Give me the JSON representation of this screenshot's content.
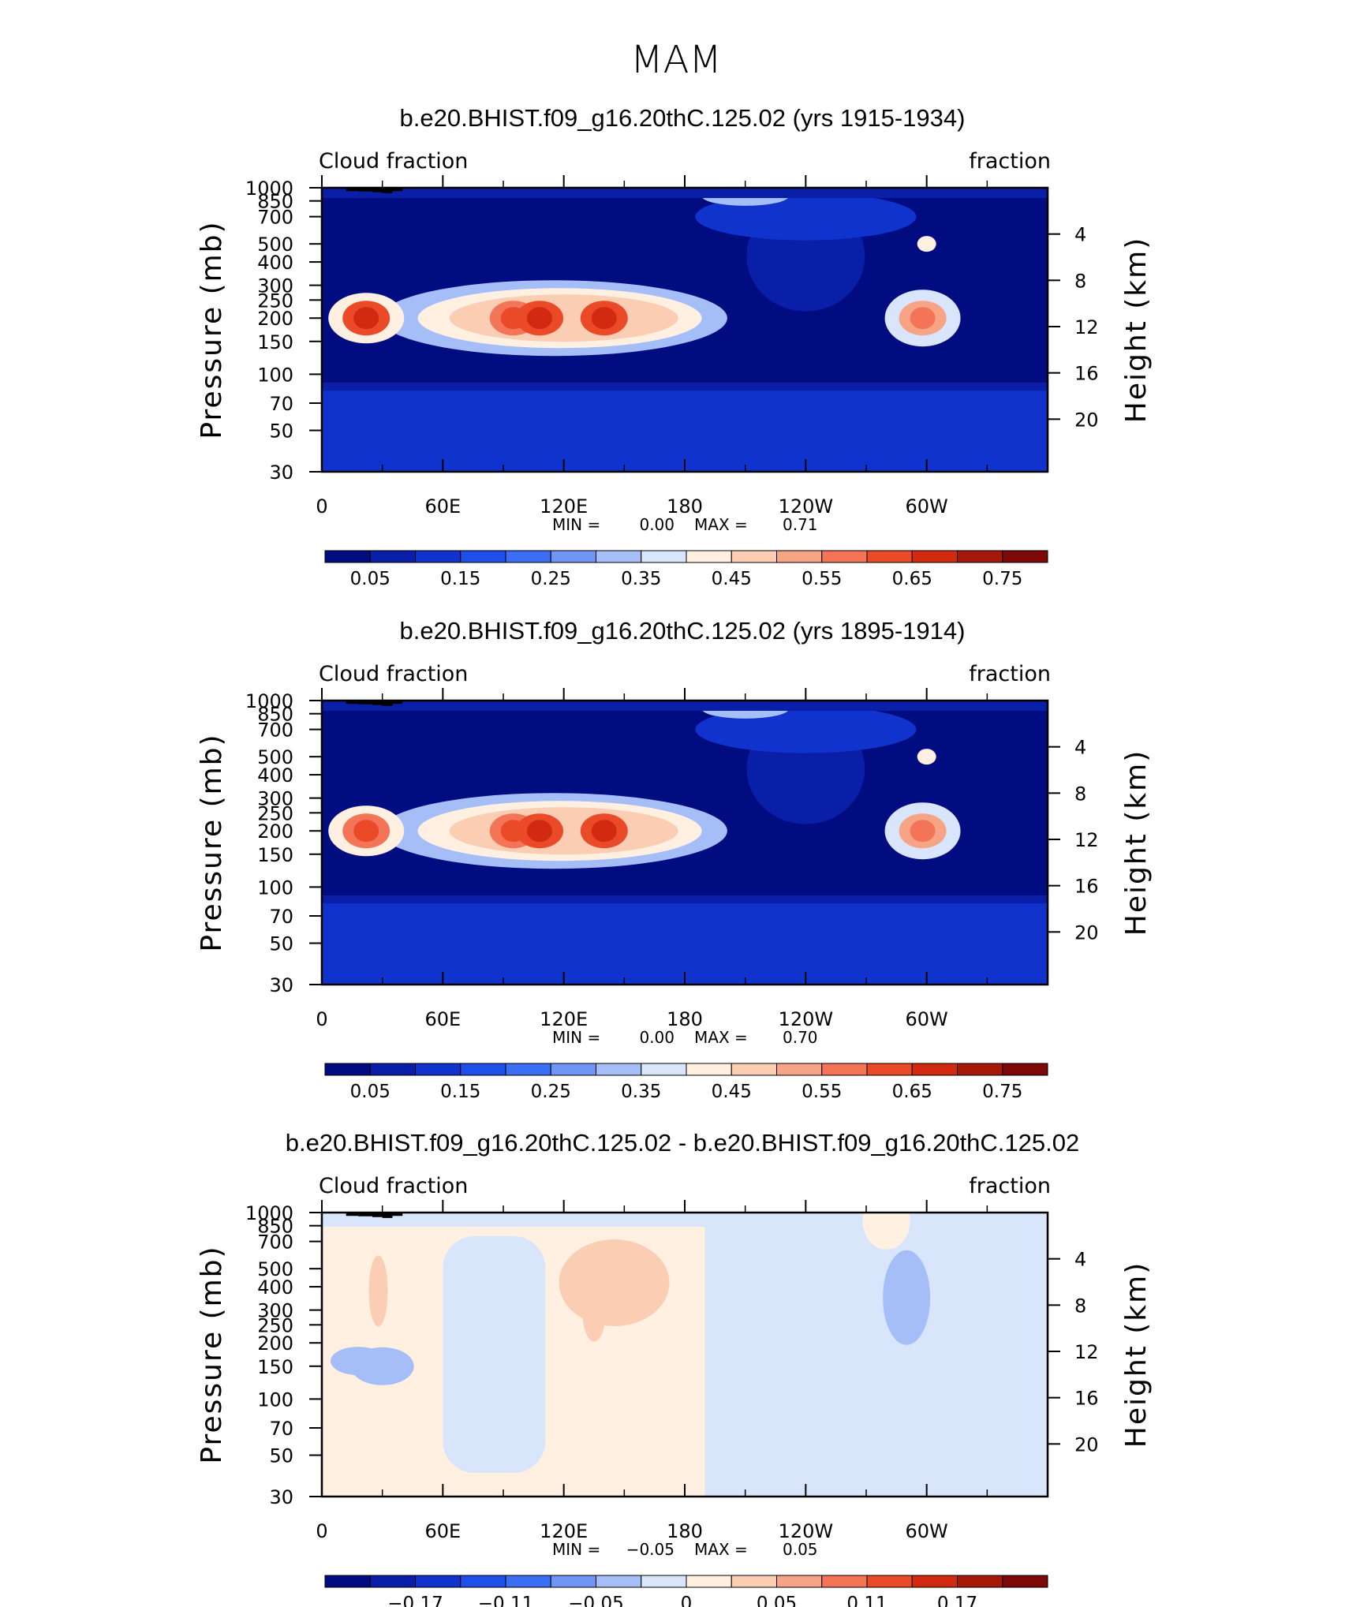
{
  "figure_title": "MAM",
  "chart_data": [
    {
      "type": "heatmap",
      "title": "b.e20.BHIST.f09_g16.20thC.125.02 (yrs 1915-1934)",
      "left_label": "Cloud fraction",
      "right_label": "fraction",
      "ylabel": "Pressure (mb)",
      "ylabel_right": "Height (km)",
      "xticklabels": [
        "0",
        "60E",
        "120E",
        "180",
        "120W",
        "60W"
      ],
      "yticklabels": [
        "30",
        "50",
        "70",
        "100",
        "150",
        "200",
        "250",
        "300",
        "400",
        "500",
        "700",
        "850",
        "1000"
      ],
      "yticklabels_right": [
        "20",
        "16",
        "12",
        "8",
        "4"
      ],
      "min_label": "MIN =",
      "min_value": "0.00",
      "max_label": "MAX =",
      "max_value": "0.71",
      "colorbar_ticks": [
        "0.05",
        "0.15",
        "0.25",
        "0.35",
        "0.45",
        "0.55",
        "0.65",
        "0.75"
      ],
      "levels": [
        0.0,
        0.05,
        0.1,
        0.15,
        0.2,
        0.25,
        0.3,
        0.35,
        0.4,
        0.45,
        0.5,
        0.55,
        0.6,
        0.65,
        0.7,
        0.75,
        0.8
      ],
      "colors": [
        "#000c7f",
        "#0a1fa7",
        "#0f33cc",
        "#1f4fe8",
        "#3b6ef2",
        "#6f96f5",
        "#a6bef7",
        "#d8e5fb",
        "#fff0e2",
        "#fbcdb3",
        "#f7a386",
        "#f37457",
        "#ea4a27",
        "#d22a10",
        "#a7180b",
        "#7d0808"
      ],
      "xlim": [
        0,
        360
      ],
      "ylim": [
        1000,
        30
      ],
      "features": [
        {
          "lon": 22,
          "p": 200,
          "value": 0.65
        },
        {
          "lon": 95,
          "p": 200,
          "value": 0.62
        },
        {
          "lon": 108,
          "p": 200,
          "value": 0.68
        },
        {
          "lon": 140,
          "p": 200,
          "value": 0.66
        },
        {
          "lon": 298,
          "p": 200,
          "value": 0.55
        },
        {
          "lon": 240,
          "p": 430,
          "value": 0.05
        }
      ]
    },
    {
      "type": "heatmap",
      "title": "b.e20.BHIST.f09_g16.20thC.125.02 (yrs 1895-1914)",
      "left_label": "Cloud fraction",
      "right_label": "fraction",
      "ylabel": "Pressure (mb)",
      "ylabel_right": "Height (km)",
      "xticklabels": [
        "0",
        "60E",
        "120E",
        "180",
        "120W",
        "60W"
      ],
      "yticklabels": [
        "30",
        "50",
        "70",
        "100",
        "150",
        "200",
        "250",
        "300",
        "400",
        "500",
        "700",
        "850",
        "1000"
      ],
      "yticklabels_right": [
        "20",
        "16",
        "12",
        "8",
        "4"
      ],
      "min_label": "MIN =",
      "min_value": "0.00",
      "max_label": "MAX =",
      "max_value": "0.70",
      "colorbar_ticks": [
        "0.05",
        "0.15",
        "0.25",
        "0.35",
        "0.45",
        "0.55",
        "0.65",
        "0.75"
      ],
      "levels": [
        0.0,
        0.05,
        0.1,
        0.15,
        0.2,
        0.25,
        0.3,
        0.35,
        0.4,
        0.45,
        0.5,
        0.55,
        0.6,
        0.65,
        0.7,
        0.75,
        0.8
      ],
      "colors": [
        "#000c7f",
        "#0a1fa7",
        "#0f33cc",
        "#1f4fe8",
        "#3b6ef2",
        "#6f96f5",
        "#a6bef7",
        "#d8e5fb",
        "#fff0e2",
        "#fbcdb3",
        "#f7a386",
        "#f37457",
        "#ea4a27",
        "#d22a10",
        "#a7180b",
        "#7d0808"
      ],
      "xlim": [
        0,
        360
      ],
      "ylim": [
        1000,
        30
      ],
      "features": [
        {
          "lon": 22,
          "p": 200,
          "value": 0.64
        },
        {
          "lon": 95,
          "p": 200,
          "value": 0.62
        },
        {
          "lon": 108,
          "p": 200,
          "value": 0.67
        },
        {
          "lon": 140,
          "p": 200,
          "value": 0.66
        },
        {
          "lon": 298,
          "p": 200,
          "value": 0.55
        },
        {
          "lon": 235,
          "p": 430,
          "value": 0.05
        }
      ]
    },
    {
      "type": "heatmap",
      "title": "b.e20.BHIST.f09_g16.20thC.125.02 - b.e20.BHIST.f09_g16.20thC.125.02",
      "left_label": "Cloud fraction",
      "right_label": "fraction",
      "ylabel": "Pressure (mb)",
      "ylabel_right": "Height (km)",
      "xticklabels": [
        "0",
        "60E",
        "120E",
        "180",
        "120W",
        "60W"
      ],
      "yticklabels": [
        "30",
        "50",
        "70",
        "100",
        "150",
        "200",
        "250",
        "300",
        "400",
        "500",
        "700",
        "850",
        "1000"
      ],
      "yticklabels_right": [
        "20",
        "16",
        "12",
        "8",
        "4"
      ],
      "min_label": "MIN =",
      "min_value": "−0.05",
      "max_label": "MAX =",
      "max_value": "0.05",
      "colorbar_ticks": [
        "−0.17",
        "−0.11",
        "−0.05",
        "0",
        "0.05",
        "0.11",
        "0.17"
      ],
      "levels": [
        -0.23,
        -0.2,
        -0.17,
        -0.14,
        -0.11,
        -0.08,
        -0.05,
        -0.02,
        0.0,
        0.02,
        0.05,
        0.08,
        0.11,
        0.14,
        0.17,
        0.2,
        0.23
      ],
      "colors": [
        "#000c7f",
        "#0a1fa7",
        "#0f33cc",
        "#1f4fe8",
        "#3b6ef2",
        "#6f96f5",
        "#a6bef7",
        "#d8e5fb",
        "#fff0e2",
        "#fbcdb3",
        "#f7a386",
        "#f37457",
        "#ea4a27",
        "#d22a10",
        "#a7180b",
        "#7d0808"
      ],
      "xlim": [
        0,
        360
      ],
      "ylim": [
        1000,
        30
      ],
      "features": [
        {
          "lon": 150,
          "p": 400,
          "value": 0.03
        },
        {
          "lon": 290,
          "p": 300,
          "value": -0.04
        },
        {
          "lon": 22,
          "p": 150,
          "value": -0.03
        }
      ]
    }
  ]
}
